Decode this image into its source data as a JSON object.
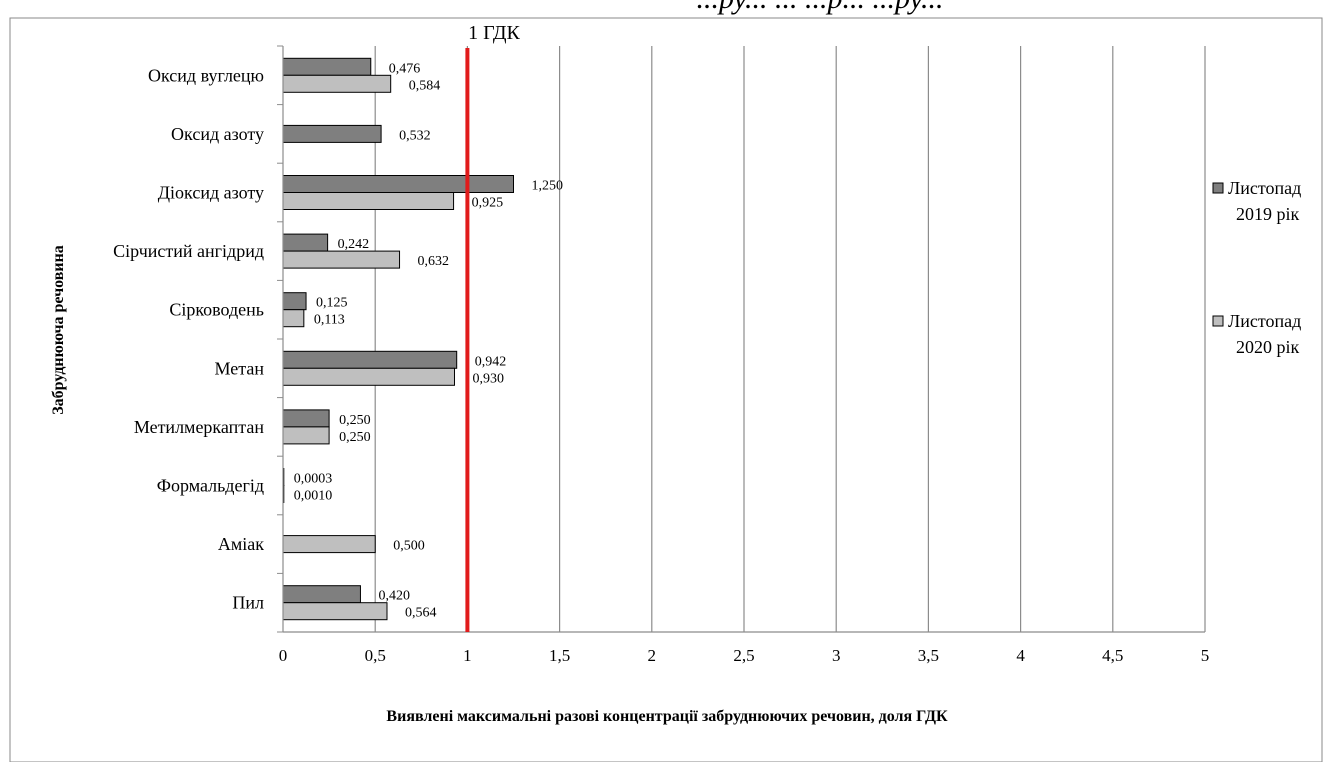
{
  "chart_data": {
    "type": "bar",
    "orientation": "horizontal",
    "header_fragment": "...ру... ... ...р... ...ру...",
    "threshold_label": "1 ГДК",
    "threshold_value": 1,
    "xlabel": "Виявлені максимальні  разові концентрації забруднюючих речовин, доля ГДК",
    "ylabel": "Забруднююча речовина",
    "xlim": [
      0,
      5
    ],
    "x_ticks": [
      "0",
      "0,5",
      "1",
      "1,5",
      "2",
      "2,5",
      "3",
      "3,5",
      "4",
      "4,5",
      "5"
    ],
    "x_tick_values": [
      0,
      0.5,
      1,
      1.5,
      2,
      2.5,
      3,
      3.5,
      4,
      4.5,
      5
    ],
    "grid": "vertical",
    "legend_position": "right",
    "categories": [
      "Оксид вуглецю",
      "Оксид азоту",
      "Діоксид азоту",
      "Сірчистий ангідрид",
      "Сірководень",
      "Метан",
      "Метилмеркаптан",
      "Формальдегід",
      "Аміак",
      "Пил"
    ],
    "series": [
      {
        "name_line1": "Листопад",
        "name_line2": "2019 рік",
        "color": "#7f7f7f",
        "values": [
          0.476,
          0.532,
          1.25,
          0.242,
          0.125,
          0.942,
          0.25,
          0.0003,
          null,
          0.42
        ],
        "labels": [
          "0,476",
          "0,532",
          "1,250",
          "0,242",
          "0,125",
          "0,942",
          "0,250",
          "0,0003",
          "",
          "0,420"
        ]
      },
      {
        "name_line1": "Листопад",
        "name_line2": "2020 рік",
        "color": "#bfbfbf",
        "values": [
          0.584,
          null,
          0.925,
          0.632,
          0.113,
          0.93,
          0.25,
          0.001,
          0.5,
          0.564
        ],
        "labels": [
          "0,584",
          "",
          "0,925",
          "0,632",
          "0,113",
          "0,930",
          "0,250",
          "0,0010",
          "0,500",
          "0,564"
        ]
      }
    ]
  }
}
